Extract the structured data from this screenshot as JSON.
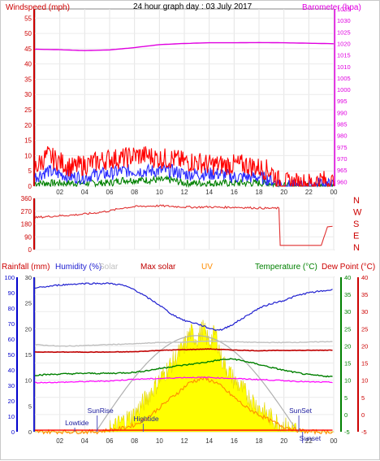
{
  "header": {
    "title": "24 hour graph day : 03 July 2017",
    "left_label": "Windspeed (mph)",
    "right_label": "Barometer (hpa)"
  },
  "colors": {
    "wind_gust": "#ff0000",
    "wind_avg": "#2b2bff",
    "wind_low": "#008000",
    "barometer": "#e000e0",
    "wind_dir": "#e03030",
    "humidity": "#2020d0",
    "solar": "#c0c0c0",
    "uv": "#ff8c00",
    "temperature": "#008000",
    "dew": "#ff00ff",
    "rain": "#ff0000",
    "max_solar": "#c00000",
    "sun_fill": "#ffff00"
  },
  "chart_data": [
    {
      "type": "line",
      "title": "24 hour graph day : 03 July 2017",
      "x_ticks": [
        "02",
        "04",
        "06",
        "08",
        "10",
        "12",
        "14",
        "16",
        "18",
        "20",
        "22",
        "00"
      ],
      "y_left": {
        "label": "Windspeed (mph)",
        "range": [
          0,
          58
        ],
        "ticks": [
          0,
          5,
          10,
          15,
          20,
          25,
          30,
          35,
          40,
          45,
          50,
          55
        ]
      },
      "y_right": {
        "label": "Barometer (hpa)",
        "range": [
          958,
          1035
        ],
        "ticks": [
          960,
          965,
          970,
          975,
          980,
          985,
          990,
          995,
          1000,
          1005,
          1010,
          1015,
          1020,
          1025,
          1030,
          1035
        ]
      },
      "series": [
        {
          "name": "Barometer (hpa)",
          "axis": "right",
          "x": [
            0,
            2,
            4,
            6,
            8,
            10,
            12,
            14,
            16,
            18,
            20,
            22,
            24
          ],
          "values": [
            1017.5,
            1017.3,
            1016.9,
            1017.2,
            1018.2,
            1019.5,
            1020.0,
            1020.3,
            1020.3,
            1020.4,
            1020.3,
            1020.1,
            1019.9
          ]
        },
        {
          "name": "gust",
          "axis": "left",
          "x": [
            0,
            1,
            2,
            3,
            4,
            5,
            6,
            7,
            8,
            9,
            10,
            11,
            12,
            13,
            14,
            15,
            16,
            17,
            18,
            19,
            19.5,
            20,
            21,
            22,
            23,
            24
          ],
          "values": [
            6,
            10,
            8,
            6,
            7,
            8,
            9,
            9,
            10,
            10,
            9,
            9,
            8,
            8,
            7,
            7,
            7,
            7,
            6,
            5,
            2,
            1,
            1,
            1,
            2,
            1
          ]
        },
        {
          "name": "average",
          "axis": "left",
          "x": [
            0,
            1,
            2,
            3,
            4,
            5,
            6,
            7,
            8,
            9,
            10,
            11,
            12,
            13,
            14,
            15,
            16,
            17,
            18,
            19,
            19.5,
            20,
            21,
            22,
            23,
            24
          ],
          "values": [
            3,
            5,
            4,
            3,
            3,
            4,
            4,
            5,
            5,
            5,
            5,
            5,
            4,
            4,
            4,
            4,
            3,
            3,
            3,
            2,
            1,
            0,
            0,
            0,
            1,
            0
          ]
        },
        {
          "name": "lull",
          "axis": "left",
          "x": [
            0,
            1,
            2,
            3,
            4,
            5,
            6,
            7,
            8,
            9,
            10,
            11,
            12,
            13,
            14,
            15,
            16,
            17,
            18,
            19,
            19.5,
            20,
            21,
            22,
            23,
            24
          ],
          "values": [
            1,
            1,
            1,
            1,
            1,
            1,
            1,
            2,
            2,
            2,
            2,
            2,
            1,
            1,
            1,
            1,
            1,
            1,
            1,
            1,
            0,
            0,
            0,
            0,
            0,
            0
          ]
        }
      ]
    },
    {
      "type": "line",
      "x_ticks": [
        "02",
        "04",
        "06",
        "08",
        "10",
        "12",
        "14",
        "16",
        "18",
        "20",
        "22",
        "00"
      ],
      "y_left": {
        "range": [
          0,
          360
        ],
        "ticks": [
          0,
          90,
          180,
          270,
          360
        ]
      },
      "y_right": {
        "ticks": [
          "N",
          "W",
          "S",
          "E",
          "N"
        ]
      },
      "series": [
        {
          "name": "wind direction",
          "x": [
            0,
            1,
            2,
            3,
            4,
            5,
            6,
            7,
            8,
            9,
            10,
            11,
            12,
            13,
            14,
            15,
            16,
            17,
            18,
            19,
            19.6,
            19.65,
            21,
            22,
            23,
            23.5,
            24
          ],
          "values": [
            225,
            232,
            238,
            243,
            250,
            260,
            272,
            292,
            302,
            306,
            308,
            304,
            300,
            298,
            300,
            297,
            298,
            295,
            292,
            290,
            292,
            30,
            30,
            30,
            30,
            160,
            165
          ]
        }
      ]
    },
    {
      "type": "area",
      "x_ticks": [
        "02",
        "04",
        "06",
        "08",
        "10",
        "12",
        "14",
        "16",
        "18",
        "20",
        "22",
        "00"
      ],
      "legend": [
        "Rainfall (mm)",
        "Humidity (%)",
        "Solar",
        "Max solar",
        "UV",
        "Temperature (°C)",
        "Dew Point (°C)"
      ],
      "axes": {
        "rain": {
          "label": "Rainfall (mm)",
          "range": [
            0,
            100
          ],
          "ticks": [
            0,
            10,
            20,
            30,
            40,
            50,
            60,
            70,
            80,
            90,
            100
          ]
        },
        "humidity": {
          "label": "Humidity (%)",
          "range": [
            0,
            30
          ],
          "ticks": [
            0,
            5,
            10,
            15,
            20,
            25,
            30
          ]
        },
        "temperature": {
          "label": "Temperature (°C)",
          "range": [
            -5,
            40
          ],
          "ticks": [
            -5,
            0,
            5,
            10,
            15,
            20,
            25,
            30,
            35,
            40
          ]
        },
        "dew": {
          "label": "Dew Point (°C)",
          "range": [
            -5,
            40
          ],
          "ticks": [
            -5,
            0,
            5,
            10,
            15,
            20,
            25,
            30,
            35,
            40
          ]
        }
      },
      "annotations": [
        {
          "text": "Lowtide",
          "x": 3.2
        },
        {
          "text": "SunRise",
          "x": 5.0
        },
        {
          "text": "Hightide",
          "x": 8.7
        },
        {
          "text": "SunSet",
          "x": 21.2
        },
        {
          "text": "Sunset",
          "x": 21.5
        }
      ],
      "series": [
        {
          "name": "Humidity",
          "x": [
            0,
            2,
            4,
            6,
            7,
            8,
            9,
            10,
            11,
            12,
            13,
            14,
            14.5,
            15,
            16,
            17,
            18,
            19,
            20,
            21,
            22,
            23,
            24
          ],
          "values": [
            93,
            95,
            96,
            96,
            95,
            92,
            87,
            82,
            76,
            72,
            70,
            67,
            66,
            66,
            70,
            75,
            80,
            83,
            85,
            88,
            90,
            91,
            92
          ]
        },
        {
          "name": "Solar",
          "x": [
            0,
            2,
            4,
            6,
            8,
            10,
            12,
            14,
            16,
            18,
            20,
            22,
            24
          ],
          "values": [
            20.4,
            19.9,
            20.1,
            20.4,
            20.6,
            21.0,
            21.1,
            21.4,
            21.2,
            21.0,
            21.0,
            21.1,
            21.3
          ]
        },
        {
          "name": "Max solar",
          "x": [
            0,
            2,
            4,
            6,
            8,
            10,
            12,
            14,
            16,
            18,
            20,
            22,
            24
          ],
          "values": [
            18.2,
            18.2,
            18.2,
            18.2,
            18.3,
            18.7,
            18.9,
            19.1,
            18.8,
            18.6,
            18.7,
            18.7,
            18.8
          ]
        },
        {
          "name": "Temperature",
          "x": [
            0,
            2,
            4,
            6,
            8,
            9,
            10,
            11,
            12,
            13,
            14,
            15,
            16,
            17,
            18,
            19,
            20,
            21,
            22,
            23,
            24
          ],
          "values": [
            11.5,
            11.8,
            12.0,
            12.0,
            12.3,
            12.8,
            13.4,
            14.0,
            14.4,
            14.9,
            15.4,
            16.0,
            16.2,
            15.4,
            14.6,
            13.7,
            12.9,
            12.2,
            11.6,
            11.3,
            11.0
          ]
        },
        {
          "name": "Dew Point",
          "x": [
            0,
            2,
            4,
            6,
            8,
            10,
            12,
            14,
            16,
            18,
            20,
            22,
            24
          ],
          "values": [
            9.3,
            9.4,
            9.6,
            9.8,
            10.3,
            10.5,
            10.8,
            10.8,
            10.5,
            10.2,
            9.9,
            9.5,
            9.4
          ]
        },
        {
          "name": "UV",
          "x": [
            0,
            5,
            6,
            7,
            8,
            9,
            10,
            11,
            12,
            12.5,
            13,
            13.5,
            14,
            14.5,
            15,
            16,
            17,
            18,
            19,
            20,
            21,
            22,
            24
          ],
          "values": [
            -5,
            -5,
            -4.5,
            -4,
            -3,
            -1,
            2,
            5,
            8,
            9.5,
            10,
            10.5,
            10,
            9.5,
            8,
            5,
            2,
            0,
            -2,
            -3.5,
            -4.5,
            -5,
            -5
          ]
        },
        {
          "name": "Sun",
          "x": [
            0,
            5,
            6,
            7,
            8,
            9,
            10,
            11,
            12,
            12.5,
            13,
            13.5,
            14,
            14.5,
            15,
            16,
            17,
            18,
            19,
            20,
            21,
            22,
            24
          ],
          "values": [
            -5,
            -5,
            -4.6,
            -2,
            0,
            5,
            10,
            15,
            20,
            24,
            22,
            25,
            21,
            24,
            16,
            10,
            6,
            2,
            -1,
            -3.5,
            -4.5,
            -5,
            -5
          ]
        },
        {
          "name": "Rainfall",
          "x": [
            0,
            24
          ],
          "values": [
            1,
            1
          ]
        }
      ]
    }
  ]
}
